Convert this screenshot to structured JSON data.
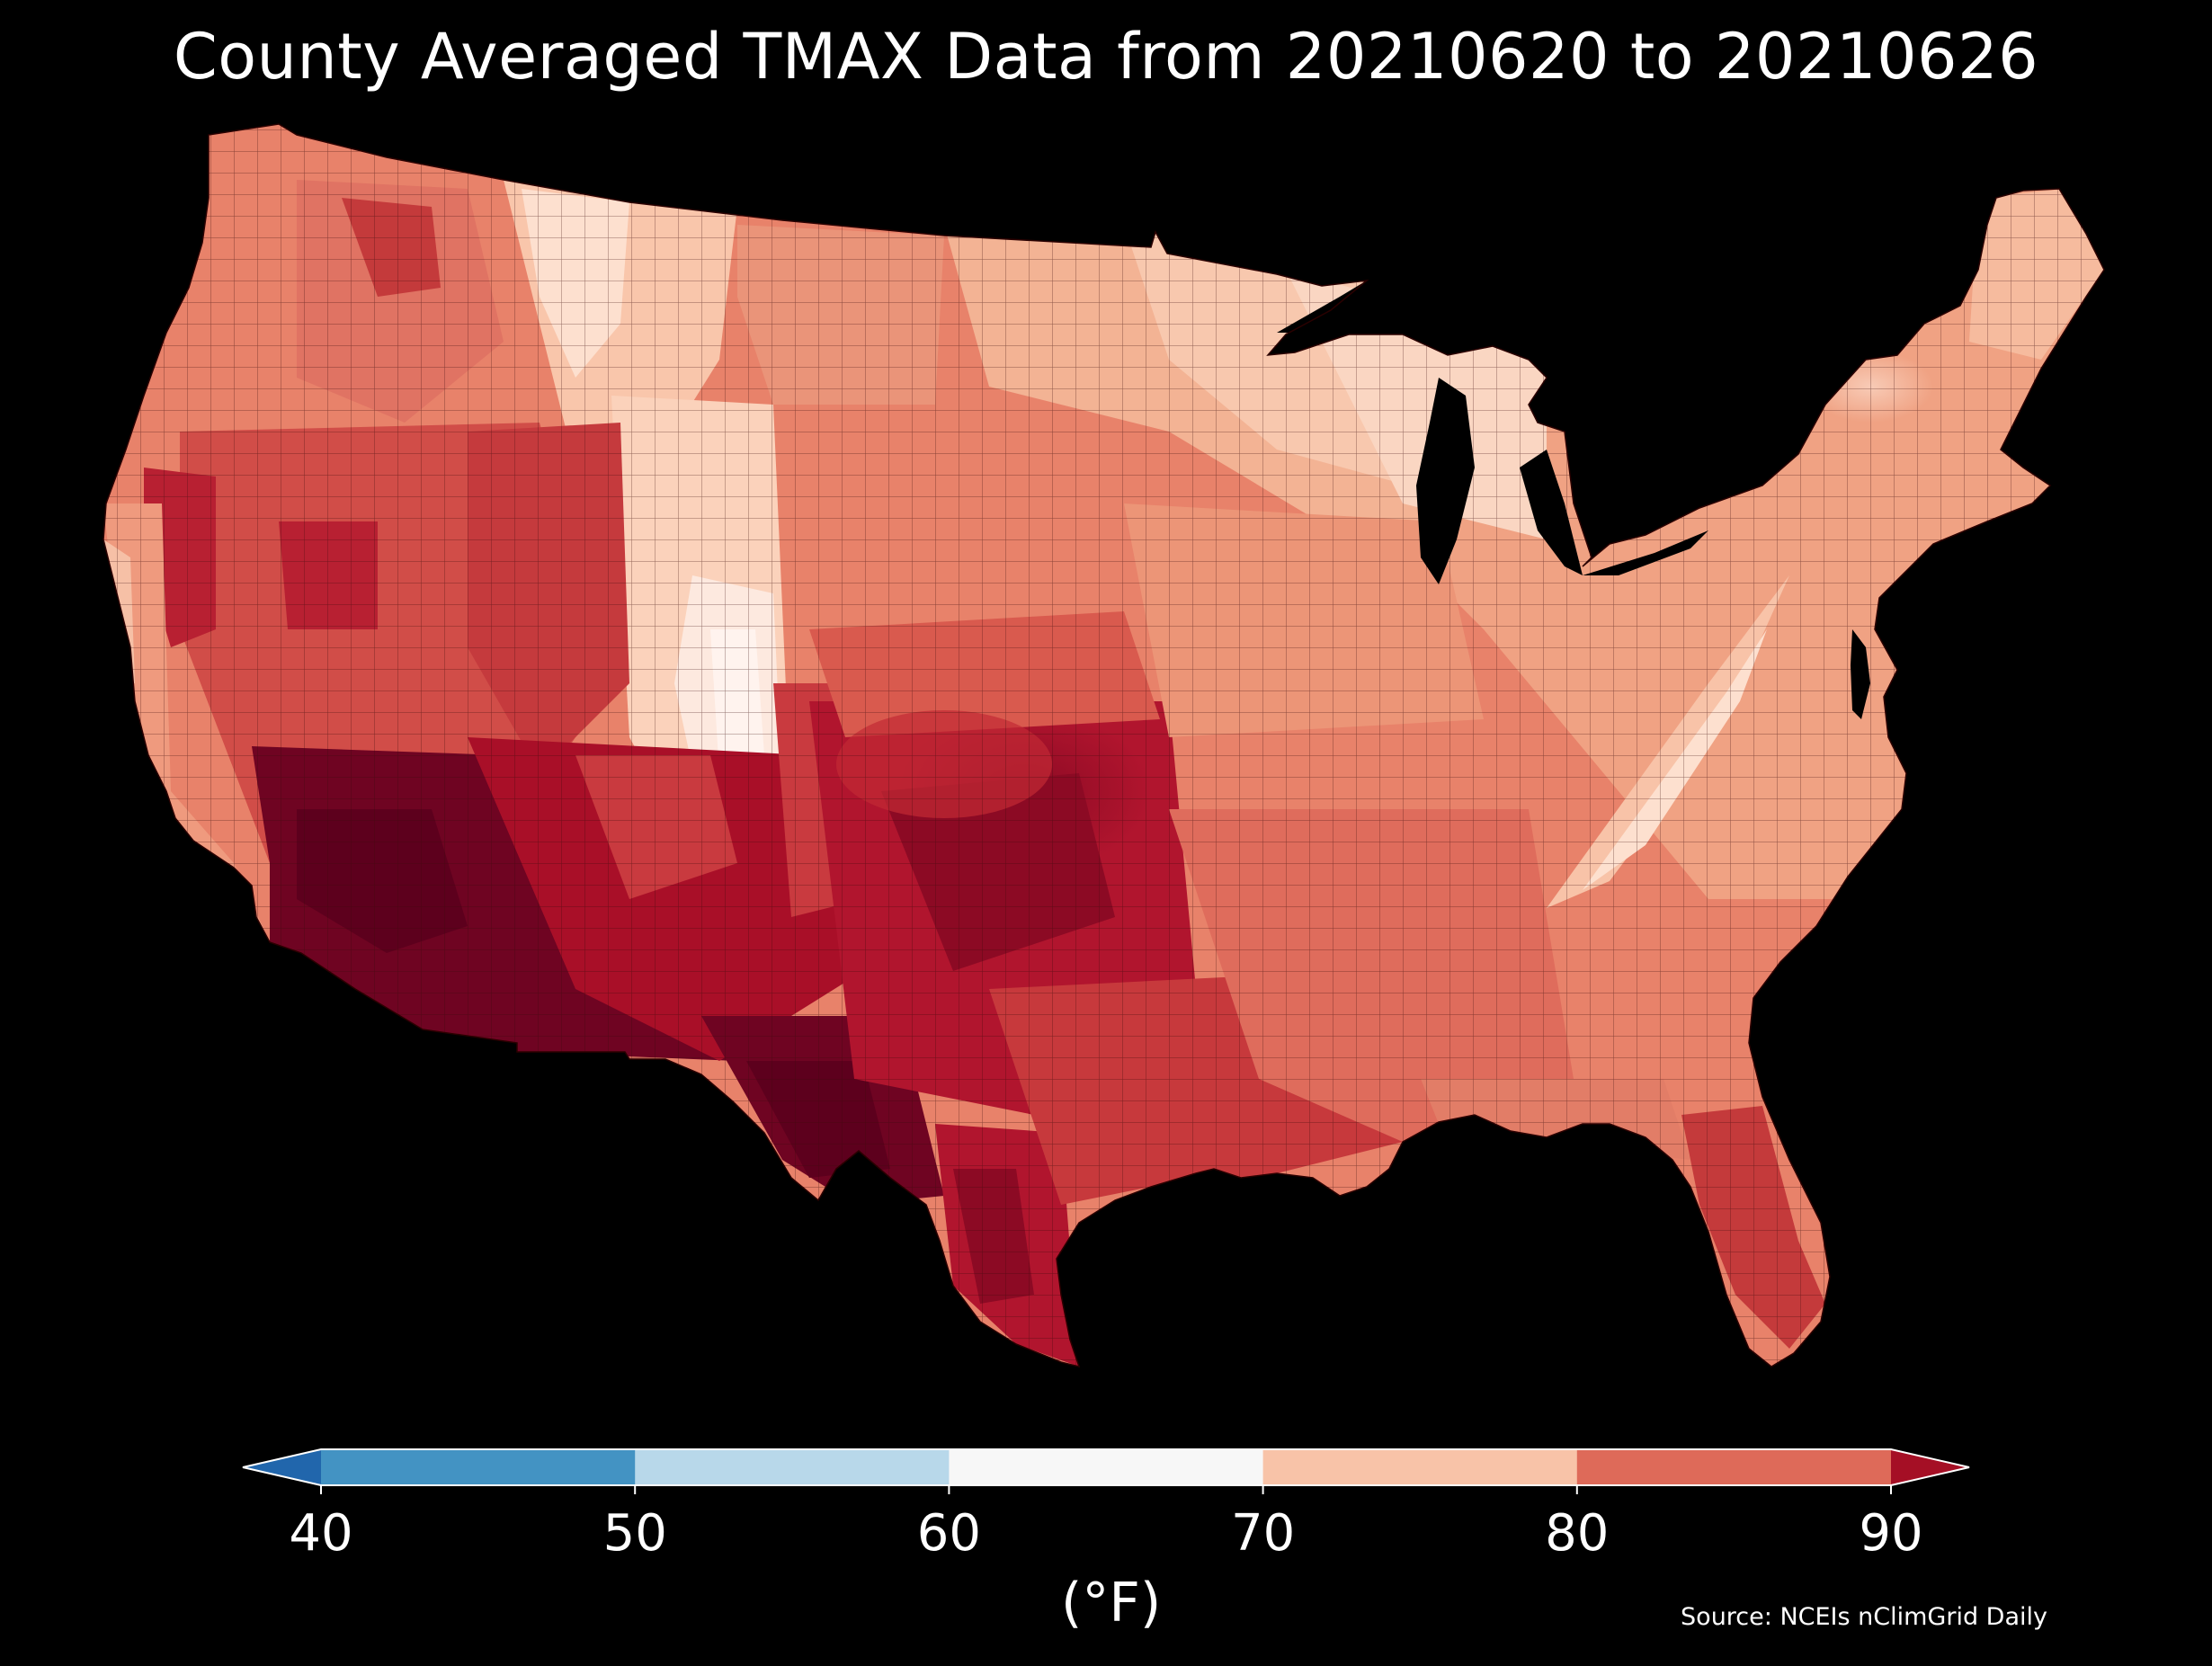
{
  "title": "County Averaged TMAX Data from 20210620 to 20210626",
  "colorbar": {
    "unit_label": "(°F)",
    "ticks": [
      "40",
      "50",
      "60",
      "70",
      "80",
      "90"
    ],
    "bins": [
      {
        "range": "<40",
        "color": "#2166ac"
      },
      {
        "range": "40-50",
        "color": "#4393c3"
      },
      {
        "range": "50-60",
        "color": "#b8d8ea"
      },
      {
        "range": "60-70",
        "color": "#f7f7f7"
      },
      {
        "range": "70-80",
        "color": "#f8c3a8"
      },
      {
        "range": "80-90",
        "color": "#de6a59"
      },
      {
        "range": ">90",
        "color": "#a50f25"
      }
    ]
  },
  "source": "Source: NCEIs nClimGrid Daily",
  "map_colors": {
    "background": "#000000",
    "hottest": "#67001f",
    "very_hot": "#a50f25",
    "hot": "#c63a3a",
    "warm": "#de6a59",
    "mild": "#ef9a78",
    "cool": "#f8c3a8",
    "coolest": "#fde6d8"
  }
}
